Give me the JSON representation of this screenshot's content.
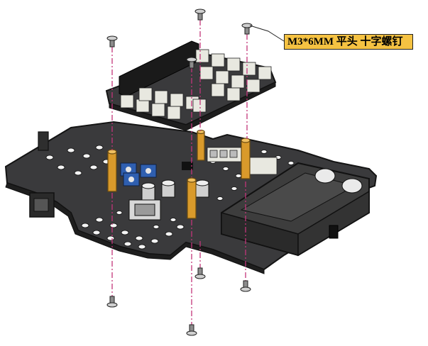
{
  "callout": {
    "text": "M3*6MM 平头 十字螺钉"
  },
  "colors": {
    "board": "#3a3a3c",
    "board_edge": "#141414",
    "connector": "#e8e8e0",
    "standoff": "#d99a2b",
    "guide_line": "#c2357a",
    "callout_bg": "#f5c242",
    "capacitor": "#2f5fb0",
    "battery_holder": "#3d3d3d",
    "screw": "#8c8c8c"
  },
  "parts": {
    "screws_top": 4,
    "screws_bottom": 4,
    "standoffs": 4
  }
}
